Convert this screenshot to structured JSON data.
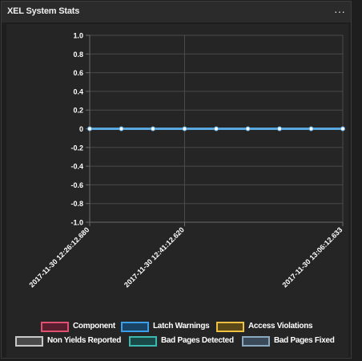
{
  "widget": {
    "title": "XEL System Stats",
    "menu_icon": "ellipsis-icon",
    "menu_glyph": "···"
  },
  "chart_data": {
    "type": "line",
    "x": [
      "2017-11-30 12:26:12.680",
      "",
      "",
      "2017-11-30 12:41:12.620",
      "",
      "",
      "",
      "",
      "2017-11-30 13:06:12.633"
    ],
    "x_tick_labels": [
      "2017-11-30 12:26:12.680",
      "2017-11-30 12:41:12.620",
      "2017-11-30 13:06:12.633"
    ],
    "y_tick_labels": [
      "1.0",
      "0.8",
      "0.6",
      "0.4",
      "0.2",
      "0",
      "-0.2",
      "-0.4",
      "-0.6",
      "-0.8",
      "-1.0"
    ],
    "ylim": [
      -1.0,
      1.0
    ],
    "grid": true,
    "legend_position": "bottom",
    "series": [
      {
        "name": "Component",
        "color": "#e05070",
        "fill": "#5a1f2e",
        "values": [
          0,
          0,
          0,
          0,
          0,
          0,
          0,
          0,
          0
        ]
      },
      {
        "name": "Latch Warnings",
        "color": "#3a9ee8",
        "fill": "#1a4466",
        "values": [
          0,
          0,
          0,
          0,
          0,
          0,
          0,
          0,
          0
        ]
      },
      {
        "name": "Access Violations",
        "color": "#f0c040",
        "fill": "#5a4818",
        "values": [
          0,
          0,
          0,
          0,
          0,
          0,
          0,
          0,
          0
        ]
      },
      {
        "name": "Non Yields Reported",
        "color": "#c8c8c8",
        "fill": "#4a4a4a",
        "values": [
          0,
          0,
          0,
          0,
          0,
          0,
          0,
          0,
          0
        ]
      },
      {
        "name": "Bad Pages Detected",
        "color": "#3cb8b0",
        "fill": "#1a4a48",
        "values": [
          0,
          0,
          0,
          0,
          0,
          0,
          0,
          0,
          0
        ]
      },
      {
        "name": "Bad Pages Fixed",
        "color": "#8aa8c0",
        "fill": "#3a4a58",
        "values": [
          0,
          0,
          0,
          0,
          0,
          0,
          0,
          0,
          0
        ]
      }
    ],
    "line_color": "#5aa8e0",
    "point_color": "#ffffff"
  }
}
